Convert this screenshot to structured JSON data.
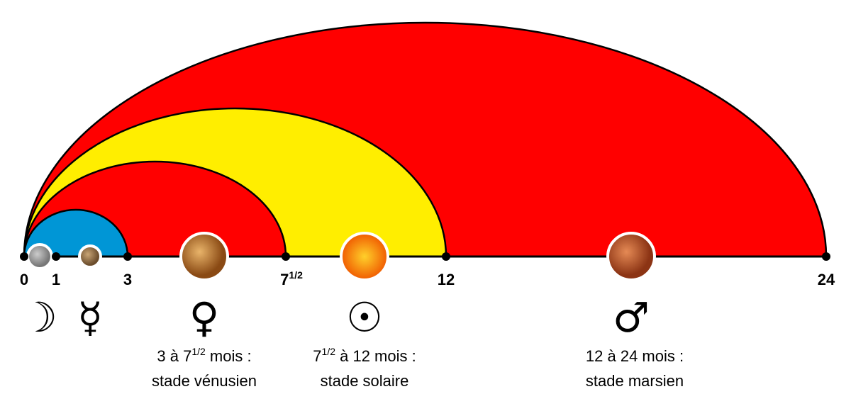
{
  "axis": {
    "ticks": [
      {
        "main": "0"
      },
      {
        "main": "1"
      },
      {
        "main": "3"
      },
      {
        "main": "7",
        "sup": "1/2"
      },
      {
        "main": "12"
      },
      {
        "main": "24"
      }
    ]
  },
  "symbols": [
    "☽",
    "☿",
    "♀",
    "☉",
    "♂"
  ],
  "captions": [
    {
      "pre": "3 à 7",
      "sup": "1/2",
      "post": " mois :",
      "line2": "stade vénusien"
    },
    {
      "pre": "7",
      "sup": "1/2",
      "post": " à 12 mois :",
      "line2": "stade solaire"
    },
    {
      "pre": "12 à 24 mois :",
      "line2": "stade marsien"
    }
  ]
}
